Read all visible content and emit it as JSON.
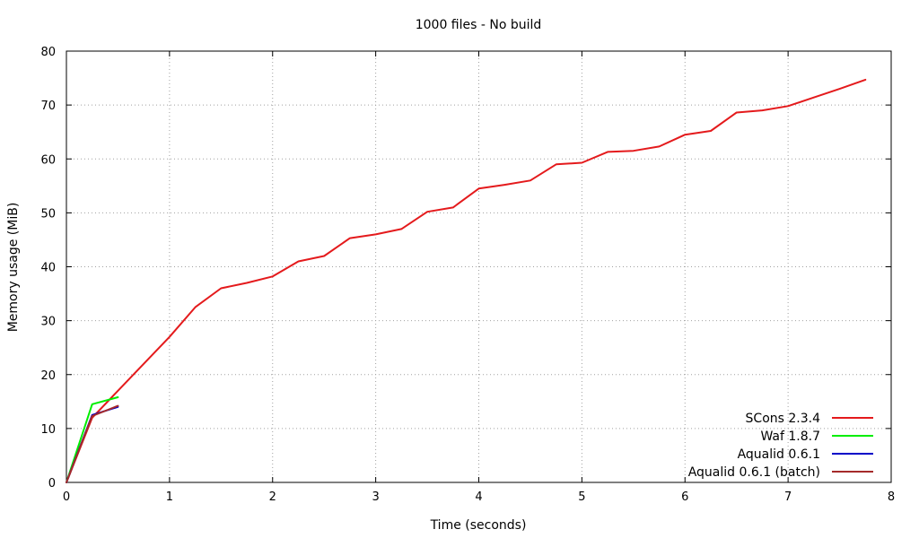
{
  "chart_data": {
    "type": "line",
    "title": "1000 files - No build",
    "xlabel": "Time (seconds)",
    "ylabel": "Memory usage (MiB)",
    "xlim": [
      0,
      8
    ],
    "ylim": [
      0,
      80
    ],
    "xticks": [
      0,
      1,
      2,
      3,
      4,
      5,
      6,
      7,
      8
    ],
    "yticks": [
      0,
      10,
      20,
      30,
      40,
      50,
      60,
      70,
      80
    ],
    "grid": true,
    "legend_position": "bottom-right",
    "series": [
      {
        "name": "SCons 2.3.4",
        "color": "#e41a1c",
        "x": [
          0,
          0.25,
          0.5,
          0.75,
          1.0,
          1.25,
          1.5,
          1.75,
          2.0,
          2.25,
          2.5,
          2.75,
          3.0,
          3.25,
          3.5,
          3.75,
          4.0,
          4.25,
          4.5,
          4.75,
          5.0,
          5.25,
          5.5,
          5.75,
          6.0,
          6.25,
          6.5,
          6.75,
          7.0,
          7.25,
          7.5,
          7.75
        ],
        "y": [
          0,
          12.0,
          17.0,
          22.0,
          27.0,
          32.5,
          36.0,
          37.0,
          38.2,
          41.0,
          42.0,
          45.3,
          46.0,
          47.0,
          50.2,
          51.0,
          54.5,
          55.2,
          56.0,
          59.0,
          59.3,
          61.3,
          61.5,
          62.3,
          64.5,
          65.2,
          68.6,
          69.0,
          69.8,
          71.4,
          73.0,
          74.7
        ]
      },
      {
        "name": "Waf 1.8.7",
        "color": "#00ee00",
        "x": [
          0,
          0.25,
          0.5
        ],
        "y": [
          0,
          14.5,
          15.8
        ]
      },
      {
        "name": "Aqualid 0.6.1",
        "color": "#0000c8",
        "x": [
          0,
          0.25,
          0.5
        ],
        "y": [
          0,
          12.5,
          14.0
        ]
      },
      {
        "name": "Aqualid 0.6.1 (batch)",
        "color": "#a52a2a",
        "x": [
          0,
          0.25,
          0.5
        ],
        "y": [
          0,
          12.3,
          14.2
        ]
      }
    ]
  }
}
